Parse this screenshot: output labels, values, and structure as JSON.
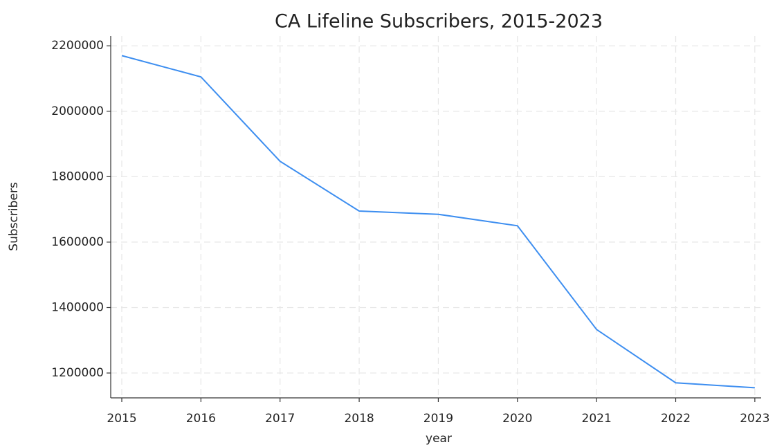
{
  "chart_data": {
    "type": "line",
    "title": "CA Lifeline Subscribers, 2015-2023",
    "x_label": "year",
    "y_label": "Subscribers",
    "x": [
      2015,
      2016,
      2017,
      2018,
      2019,
      2020,
      2021,
      2022,
      2023
    ],
    "series": [
      {
        "name": "Subscribers",
        "color": "#3d8ef0",
        "values": [
          2170000,
          2105000,
          1847000,
          1695000,
          1685000,
          1650000,
          1333000,
          1170000,
          1155000
        ]
      }
    ],
    "xlim": [
      2014.86,
      2023.08
    ],
    "xticks": [
      2015,
      2016,
      2017,
      2018,
      2019,
      2020,
      2021,
      2022,
      2023
    ],
    "ylim": [
      1124000,
      2230000
    ],
    "yticks": [
      1200000,
      1400000,
      1600000,
      1800000,
      2000000,
      2200000
    ],
    "grid": true,
    "legend": false
  }
}
